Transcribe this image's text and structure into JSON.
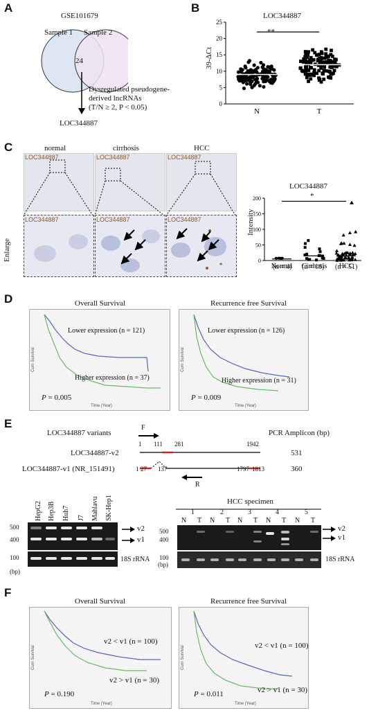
{
  "panelA": {
    "label": "A",
    "title": "GSE101679",
    "sample1": "Sample 1",
    "sample2": "Sample  2",
    "overlap": "24",
    "annotation_line1": "Dysregulated pseudogene-",
    "annotation_line2": "derived lncRNAs",
    "annotation_line3": "(T/N ≥ 2, P < 0.05)",
    "result": "LOC344887",
    "colors": {
      "circle1": "#dce7f3",
      "circle2": "#efe3f1"
    }
  },
  "panelB": {
    "label": "B",
    "significance": "**",
    "chart_data": {
      "type": "scatter",
      "title": "LOC344887",
      "ylabel": "39-ΔCt",
      "categories": [
        "N",
        "T"
      ],
      "ylim": [
        0,
        25
      ],
      "yticks": [
        "0",
        "5",
        "10",
        "15",
        "20",
        "25"
      ],
      "medians": [
        9,
        12
      ]
    }
  },
  "panelC": {
    "label": "C",
    "col_labels": [
      "normal",
      "cirrhosis",
      "HCC"
    ],
    "tag": "LOC344887",
    "enlarge": "Enlarge",
    "significance": "*",
    "chart_data": {
      "type": "scatter",
      "title": "LOC344887",
      "ylabel": "Intensity",
      "categories": [
        "Normal",
        "Cirrhosis",
        "HCC"
      ],
      "n_labels": [
        "(n = 4)",
        "(n = 18)",
        "(n = 51)"
      ],
      "ylim": [
        0,
        200
      ],
      "yticks": [
        "0",
        "50",
        "100",
        "150",
        "200"
      ],
      "medians": [
        5,
        15,
        15
      ]
    }
  },
  "panelD": {
    "label": "D",
    "os_title": "Overall Survival",
    "rfs_title": "Recurrence free Survival",
    "os_lower": "Lower  expression (n = 121)",
    "os_higher": "Higher  expression (n = 37)",
    "os_p": "= 0.005",
    "rfs_lower": "Lower  expression (n = 126)",
    "rfs_higher": "Higher  expression (n = 31)",
    "rfs_p": "= 0.009",
    "p_symbol": "P",
    "ylab": "Cum Survival",
    "xlab": "Time (Year)"
  },
  "panelE": {
    "label": "E",
    "variants_title": "LOC344887 variants",
    "amplicon_title": "PCR Amplicon (bp)",
    "v2_name": "LOC344887-v2",
    "v1_name": "LOC344887-v1 (NR_151491)",
    "primer_F": "F",
    "primer_R": "R",
    "v2_pos": [
      "1",
      "111",
      "281",
      "1942"
    ],
    "v1_pos": [
      "1",
      "27",
      "137",
      "1797",
      "1813"
    ],
    "v2_amplicon": "531",
    "v1_amplicon": "360",
    "cell_lines": [
      "HepG2",
      "Hep3B",
      "Huh7",
      "J7",
      "Mahlavu",
      "SK-Hep1"
    ],
    "ladder": [
      "500",
      "400",
      "100"
    ],
    "bp": "(bp)",
    "v2_band": "v2",
    "v1_band": "v1",
    "rrna": "18S rRNA",
    "hcc_title": "HCC specimen",
    "specimens": [
      "1",
      "2",
      "3",
      "4",
      "5"
    ],
    "nt": [
      "N",
      "T"
    ]
  },
  "panelF": {
    "label": "F",
    "os_title": "Overall Survival",
    "rfs_title": "Recurrence free Survival",
    "os_upper": "v2 < v1 (n = 100)",
    "os_lower": "v2 > v1 (n = 30)",
    "os_p": "= 0.190",
    "rfs_upper": "v2 < v1 (n = 100)",
    "rfs_lower": "v2 > v1 (n = 30)",
    "rfs_p": "= 0.011",
    "p_symbol": "P",
    "ylab": "Cum Survival",
    "xlab": "Time (Year)"
  }
}
